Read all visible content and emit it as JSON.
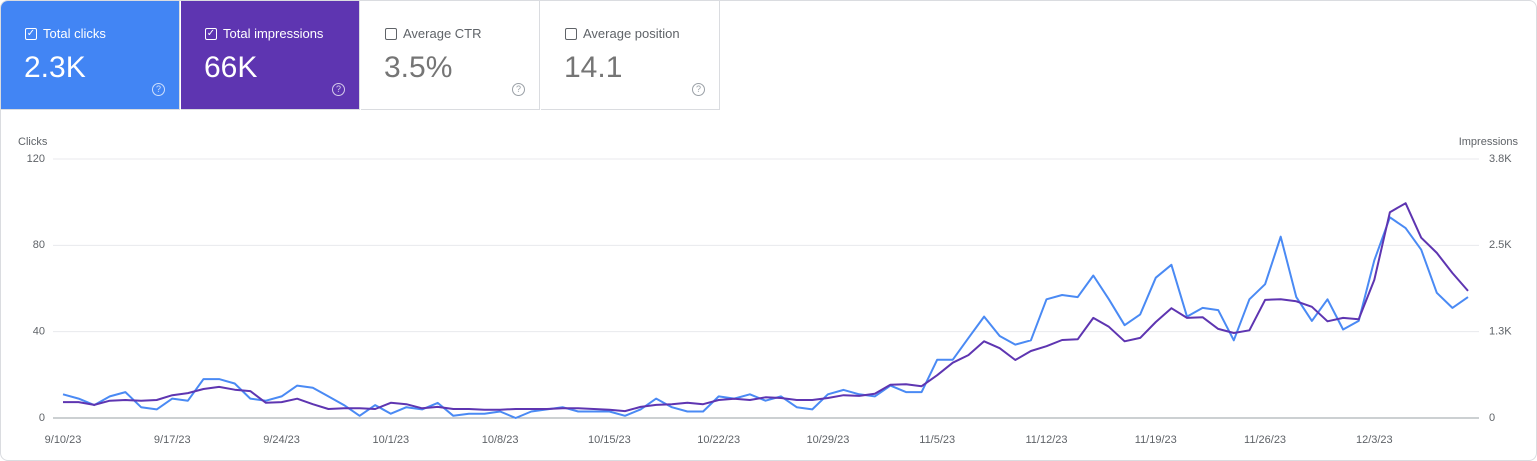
{
  "metric_cards": [
    {
      "label": "Total clicks",
      "value": "2.3K",
      "selected": true,
      "color": "#4285f4"
    },
    {
      "label": "Total impressions",
      "value": "66K",
      "selected": true,
      "color": "#5e35b1"
    },
    {
      "label": "Average CTR",
      "value": "3.5%",
      "selected": false,
      "color": "#ffffff"
    },
    {
      "label": "Average position",
      "value": "14.1",
      "selected": false,
      "color": "#ffffff"
    }
  ],
  "chart_data": {
    "type": "line",
    "ylabel": "Clicks",
    "y2label": "Impressions",
    "categories": [
      "9/10/23",
      null,
      null,
      null,
      null,
      null,
      null,
      "9/17/23",
      null,
      null,
      null,
      null,
      null,
      null,
      "9/24/23",
      null,
      null,
      null,
      null,
      null,
      null,
      "10/1/23",
      null,
      null,
      null,
      null,
      null,
      null,
      "10/8/23",
      null,
      null,
      null,
      null,
      null,
      null,
      "10/15/23",
      null,
      null,
      null,
      null,
      null,
      null,
      "10/22/23",
      null,
      null,
      null,
      null,
      null,
      null,
      "10/29/23",
      null,
      null,
      null,
      null,
      null,
      null,
      "11/5/23",
      null,
      null,
      null,
      null,
      null,
      null,
      "11/12/23",
      null,
      null,
      null,
      null,
      null,
      null,
      "11/19/23",
      null,
      null,
      null,
      null,
      null,
      null,
      "11/26/23",
      null,
      null,
      null,
      null,
      null,
      null,
      "12/3/23",
      null,
      null,
      null,
      null,
      null,
      null
    ],
    "series": [
      {
        "name": "Clicks",
        "color": "#4a8af4",
        "axis": "y",
        "values": [
          11,
          9,
          6,
          10,
          12,
          5,
          4,
          9,
          8,
          18,
          18,
          16,
          9,
          8,
          10,
          15,
          14,
          10,
          6,
          1,
          6,
          2,
          5,
          4,
          7,
          1,
          2,
          2,
          3,
          0,
          3,
          4,
          5,
          3,
          3,
          3,
          1,
          4,
          9,
          5,
          3,
          3,
          10,
          9,
          11,
          8,
          10,
          5,
          4,
          11,
          13,
          11,
          10,
          15,
          12,
          12,
          27,
          27,
          37,
          47,
          38,
          34,
          36,
          55,
          57,
          56,
          66,
          55,
          43,
          48,
          65,
          71,
          47,
          51,
          50,
          36,
          55,
          62,
          84,
          56,
          45,
          55,
          41,
          45,
          73,
          93,
          88,
          78,
          58,
          51,
          56
        ]
      },
      {
        "name": "Impressions",
        "color": "#5e35b1",
        "axis": "y2",
        "values": [
          230,
          230,
          190,
          250,
          260,
          250,
          260,
          330,
          360,
          420,
          450,
          410,
          390,
          220,
          230,
          280,
          200,
          130,
          140,
          140,
          130,
          220,
          200,
          140,
          160,
          130,
          130,
          120,
          120,
          130,
          130,
          130,
          140,
          140,
          130,
          120,
          100,
          160,
          190,
          200,
          220,
          200,
          260,
          280,
          260,
          300,
          290,
          260,
          260,
          290,
          330,
          320,
          350,
          480,
          490,
          460,
          620,
          800,
          910,
          1110,
          1010,
          840,
          970,
          1040,
          1130,
          1140,
          1450,
          1320,
          1110,
          1160,
          1390,
          1590,
          1450,
          1460,
          1290,
          1230,
          1270,
          1710,
          1720,
          1690,
          1610,
          1400,
          1450,
          1430,
          2000,
          2980,
          3110,
          2610,
          2390,
          2100,
          1840
        ]
      }
    ],
    "ylim": [
      0,
      120
    ],
    "yticks": [
      0,
      40,
      80,
      120
    ],
    "y2lim": [
      0,
      3750
    ],
    "y2ticks": [
      0,
      {
        "value": 1250,
        "label": "1.3K"
      },
      {
        "value": 2500,
        "label": "2.5K"
      },
      {
        "value": 3750,
        "label": "3.8K"
      }
    ],
    "grid": true
  }
}
